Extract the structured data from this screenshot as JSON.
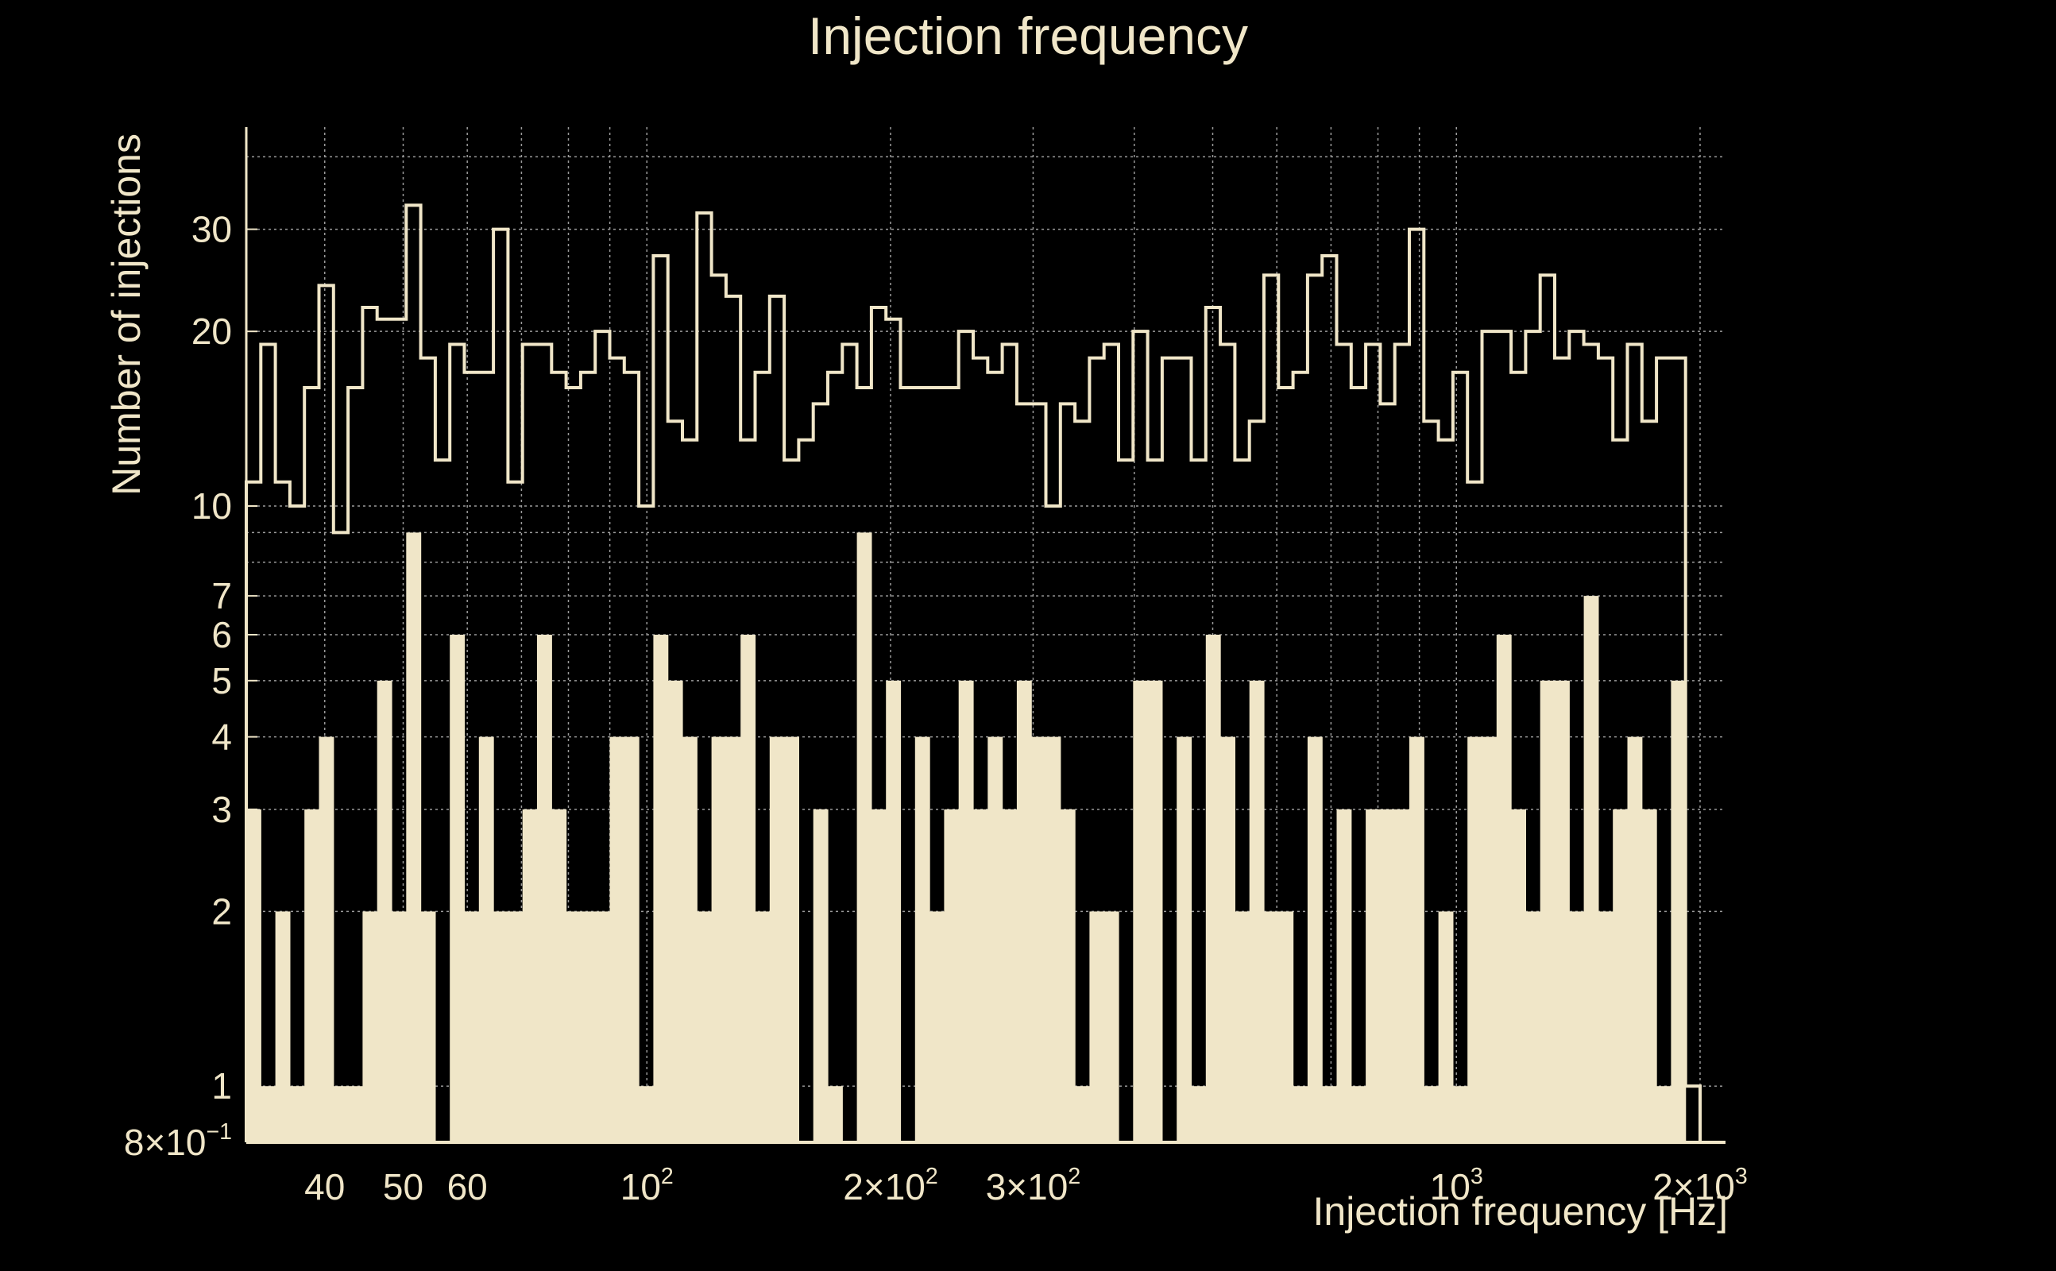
{
  "chart_data": {
    "type": "bar",
    "title": "Injection frequency",
    "xlabel": "Injection frequency [Hz]",
    "ylabel": "Number of injections",
    "xscale": "log",
    "yscale": "log",
    "xlim": [
      32,
      2150
    ],
    "ylim": [
      0.8,
      45
    ],
    "grid": true,
    "colors": {
      "background": "#000000",
      "fill": "#f0e6c8",
      "line": "#f0e6c8",
      "grid": "#9a9a9a"
    },
    "x_ticks": [
      {
        "value": 40,
        "label": "40"
      },
      {
        "value": 50,
        "label": "50"
      },
      {
        "value": 60,
        "label": "60"
      },
      {
        "value": 100,
        "label": "10",
        "sup": "2"
      },
      {
        "value": 200,
        "label": "2×10",
        "sup": "2"
      },
      {
        "value": 300,
        "label": "3×10",
        "sup": "2"
      },
      {
        "value": 1000,
        "label": "10",
        "sup": "3"
      },
      {
        "value": 2000,
        "label": "2×10",
        "sup": "3"
      }
    ],
    "y_ticks": [
      {
        "value": 0.8,
        "label": "8×10",
        "sup": "−1"
      },
      {
        "value": 1,
        "label": "1"
      },
      {
        "value": 2,
        "label": "2"
      },
      {
        "value": 3,
        "label": "3"
      },
      {
        "value": 4,
        "label": "4"
      },
      {
        "value": 5,
        "label": "5"
      },
      {
        "value": 6,
        "label": "6"
      },
      {
        "value": 7,
        "label": "7"
      },
      {
        "value": 10,
        "label": "10"
      },
      {
        "value": 20,
        "label": "20"
      },
      {
        "value": 30,
        "label": "30"
      }
    ],
    "bins": {
      "x_min": 32,
      "x_max": 2000,
      "count": 100
    },
    "series": [
      {
        "style": "filled",
        "values": [
          3,
          1,
          2,
          1,
          3,
          4,
          1,
          1,
          2,
          5,
          2,
          9,
          2,
          0,
          6,
          2,
          4,
          2,
          2,
          3,
          6,
          3,
          2,
          2,
          2,
          4,
          4,
          1,
          6,
          5,
          4,
          2,
          4,
          4,
          6,
          2,
          4,
          4,
          0,
          3,
          1,
          0,
          9,
          3,
          5,
          0,
          4,
          2,
          3,
          5,
          3,
          4,
          3,
          5,
          4,
          4,
          3,
          1,
          2,
          2,
          0,
          5,
          5,
          0,
          4,
          1,
          6,
          4,
          2,
          5,
          2,
          2,
          1,
          4,
          1,
          3,
          1,
          3,
          3,
          3,
          4,
          1,
          2,
          1,
          4,
          4,
          6,
          3,
          2,
          5,
          5,
          2,
          7,
          2,
          3,
          4,
          3,
          1,
          5,
          0
        ]
      },
      {
        "style": "step",
        "values": [
          11,
          19,
          11,
          10,
          16,
          24,
          9,
          16,
          22,
          21,
          21,
          33,
          18,
          12,
          19,
          17,
          17,
          30,
          11,
          19,
          19,
          17,
          16,
          17,
          20,
          18,
          17,
          10,
          27,
          14,
          13,
          32,
          25,
          23,
          13,
          17,
          23,
          12,
          13,
          15,
          17,
          19,
          16,
          22,
          21,
          16,
          16,
          16,
          16,
          20,
          18,
          17,
          19,
          15,
          15,
          10,
          15,
          14,
          18,
          19,
          12,
          20,
          12,
          18,
          18,
          12,
          22,
          19,
          12,
          14,
          25,
          16,
          17,
          25,
          27,
          19,
          16,
          19,
          15,
          19,
          30,
          14,
          13,
          17,
          11,
          20,
          20,
          17,
          20,
          25,
          18,
          20,
          19,
          18,
          13,
          19,
          14,
          18,
          18,
          1
        ]
      }
    ]
  }
}
